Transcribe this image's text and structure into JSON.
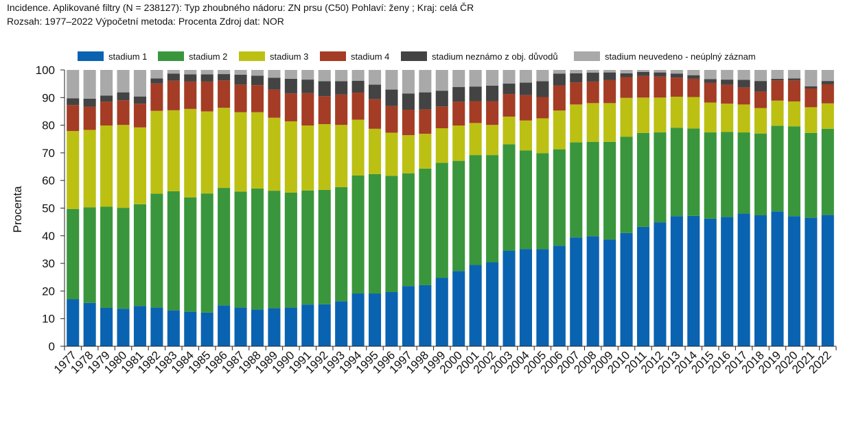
{
  "header": {
    "line1": "Incidence. Aplikované filtry (N = 238127): Typ zhoubného nádoru: ZN prsu (C50) Pohlaví: ženy ; Kraj: celá ČR",
    "line2": "Rozsah: 1977–2022 Výpočetní metoda: Procenta Zdroj dat: NOR"
  },
  "chart_data": {
    "type": "bar",
    "stacked": true,
    "title": "",
    "xlabel": "",
    "ylabel": "Procenta",
    "ylim": [
      0,
      100
    ],
    "yticks": [
      0,
      10,
      20,
      30,
      40,
      50,
      60,
      70,
      80,
      90,
      100
    ],
    "grid": false,
    "legend_position": "top",
    "categories": [
      "1977",
      "1978",
      "1979",
      "1980",
      "1981",
      "1982",
      "1983",
      "1984",
      "1985",
      "1986",
      "1987",
      "1988",
      "1989",
      "1990",
      "1991",
      "1992",
      "1993",
      "1994",
      "1995",
      "1996",
      "1997",
      "1998",
      "1999",
      "2000",
      "2001",
      "2002",
      "2003",
      "2004",
      "2005",
      "2006",
      "2007",
      "2008",
      "2009",
      "2010",
      "2011",
      "2012",
      "2013",
      "2014",
      "2015",
      "2016",
      "2017",
      "2018",
      "2019",
      "2020",
      "2021",
      "2022"
    ],
    "series": [
      {
        "name": "stadium 1",
        "color": "#0a63b0",
        "values": [
          17.0,
          15.7,
          13.9,
          13.6,
          14.6,
          14.0,
          13.0,
          12.5,
          12.2,
          14.8,
          14.0,
          13.3,
          13.8,
          14.0,
          15.1,
          15.2,
          16.3,
          19.1,
          19.1,
          19.6,
          21.8,
          22.1,
          24.8,
          27.2,
          29.4,
          30.4,
          34.6,
          35.2,
          35.1,
          36.4,
          39.4,
          39.8,
          38.6,
          41.0,
          43.2,
          44.8,
          47.1,
          47.2,
          46.2,
          46.8,
          48.0,
          47.4,
          48.8,
          47.1,
          46.5,
          47.5
        ]
      },
      {
        "name": "stadium 2",
        "color": "#3a963c",
        "values": [
          32.7,
          34.6,
          36.6,
          36.5,
          36.8,
          41.2,
          43.1,
          41.4,
          43.1,
          42.5,
          42.0,
          43.8,
          42.5,
          41.6,
          41.3,
          41.4,
          41.3,
          42.7,
          43.2,
          42.1,
          40.8,
          42.2,
          41.6,
          39.9,
          39.8,
          38.8,
          38.5,
          35.7,
          34.8,
          34.9,
          34.4,
          34.2,
          35.4,
          34.8,
          34.0,
          32.6,
          32.0,
          31.6,
          31.2,
          30.8,
          29.4,
          29.6,
          31.0,
          32.5,
          30.7,
          31.2
        ]
      },
      {
        "name": "stadium 3",
        "color": "#bcc013",
        "values": [
          28.2,
          28.0,
          29.4,
          30.0,
          27.8,
          30.0,
          29.3,
          32.0,
          29.7,
          29.0,
          28.7,
          27.6,
          26.4,
          25.8,
          23.5,
          23.8,
          22.5,
          20.2,
          16.4,
          15.6,
          13.8,
          12.6,
          12.5,
          12.8,
          11.6,
          10.9,
          10.0,
          10.8,
          12.6,
          14.0,
          13.7,
          14.0,
          14.0,
          14.1,
          12.8,
          12.6,
          11.2,
          11.4,
          10.8,
          10.2,
          10.1,
          9.2,
          9.1,
          9.0,
          9.3,
          9.2
        ]
      },
      {
        "name": "stadium 4",
        "color": "#a53c25",
        "values": [
          9.4,
          8.4,
          8.6,
          8.9,
          8.6,
          9.9,
          10.7,
          9.9,
          10.8,
          9.9,
          10.0,
          9.8,
          10.2,
          10.1,
          11.7,
          10.1,
          11.0,
          9.8,
          10.7,
          9.6,
          9.2,
          8.8,
          7.9,
          8.6,
          7.9,
          8.6,
          8.2,
          9.2,
          7.7,
          9.1,
          8.0,
          7.8,
          8.3,
          7.5,
          7.8,
          7.6,
          6.9,
          6.6,
          7.1,
          6.8,
          6.2,
          6.0,
          7.3,
          7.6,
          6.8,
          6.9
        ]
      },
      {
        "name": "stadium neznámo z obj. důvodů",
        "color": "#434343",
        "values": [
          2.4,
          2.9,
          2.2,
          2.9,
          2.6,
          1.8,
          2.6,
          2.6,
          2.6,
          2.3,
          3.6,
          3.4,
          4.3,
          5.3,
          4.9,
          5.4,
          4.8,
          4.3,
          5.3,
          6.0,
          5.9,
          6.2,
          5.7,
          5.3,
          5.3,
          5.6,
          3.8,
          4.5,
          5.7,
          4.3,
          3.3,
          3.2,
          2.8,
          1.4,
          1.5,
          1.5,
          1.5,
          1.3,
          1.4,
          1.9,
          2.7,
          3.8,
          0.6,
          0.7,
          0.8,
          1.2
        ]
      },
      {
        "name": "stadium neuvedeno - neúplný záznam",
        "color": "#a9a9a9",
        "values": [
          10.3,
          10.4,
          9.3,
          8.1,
          9.6,
          3.1,
          1.3,
          1.6,
          1.6,
          1.5,
          1.7,
          2.1,
          2.8,
          3.2,
          3.5,
          4.1,
          4.1,
          3.9,
          5.3,
          7.1,
          8.5,
          8.1,
          7.5,
          6.2,
          6.0,
          5.7,
          4.9,
          4.6,
          4.1,
          1.3,
          1.2,
          1.0,
          0.9,
          1.2,
          0.7,
          0.9,
          1.3,
          1.9,
          3.3,
          3.5,
          3.6,
          4.0,
          3.2,
          3.1,
          5.9,
          4.0
        ]
      }
    ]
  }
}
